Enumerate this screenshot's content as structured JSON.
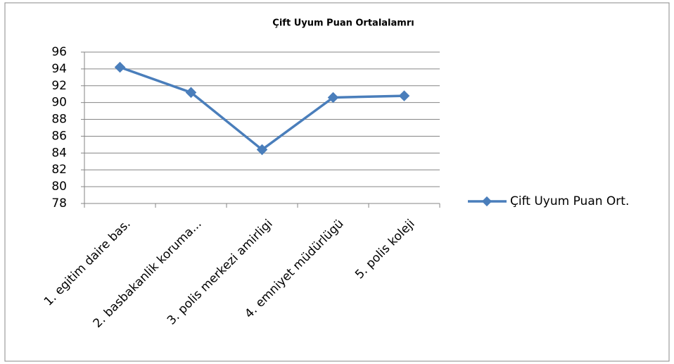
{
  "chart_data": {
    "type": "line",
    "title": "Çift Uyum Puan Ortalalamrı",
    "categories": [
      "1. egitim daire bas.",
      "2. basbakanlik koruma...",
      "3. polis merkezi amirligi",
      "4. emniyet müdürlügü",
      "5. polis koleji"
    ],
    "series": [
      {
        "name": "Çift Uyum Puan Ort.",
        "color": "#4a7ebb",
        "values": [
          94.2,
          91.2,
          84.4,
          90.6,
          90.8
        ]
      }
    ],
    "ylim": [
      78,
      96
    ],
    "yticks": [
      78,
      80,
      82,
      84,
      86,
      88,
      90,
      92,
      94,
      96
    ],
    "grid": true,
    "legend": "right"
  }
}
